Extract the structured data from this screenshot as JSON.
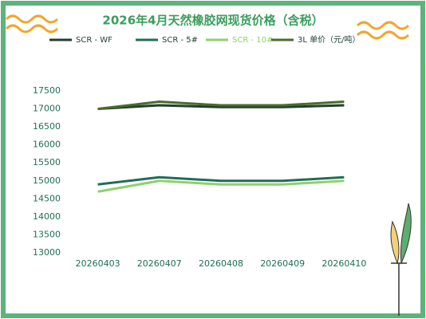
{
  "chart_data": {
    "type": "line",
    "title": "2026年4月天然橡胶网现货价格（含税）",
    "categories": [
      "20260403",
      "20260407",
      "20260408",
      "20260409",
      "20260410"
    ],
    "series": [
      {
        "name": "SCR - WF",
        "color": "#1f3f30",
        "values": [
          17000,
          17100,
          17050,
          17050,
          17100
        ]
      },
      {
        "name": "SCR - 5#",
        "color": "#1e6e58",
        "values": [
          14900,
          15100,
          15000,
          15000,
          15100
        ]
      },
      {
        "name": "SCR - 10#",
        "color": "#8fd06c",
        "values": [
          14700,
          15000,
          14900,
          14900,
          15000
        ]
      },
      {
        "name": "3L 单价（元/吨）",
        "color": "#4d6b2a",
        "values": [
          17000,
          17200,
          17100,
          17100,
          17200
        ]
      }
    ],
    "ylim": [
      13000,
      17500
    ],
    "yticks": [
      13000,
      13500,
      14000,
      14500,
      15000,
      15500,
      16000,
      16500,
      17000,
      17500
    ],
    "grid": false
  }
}
